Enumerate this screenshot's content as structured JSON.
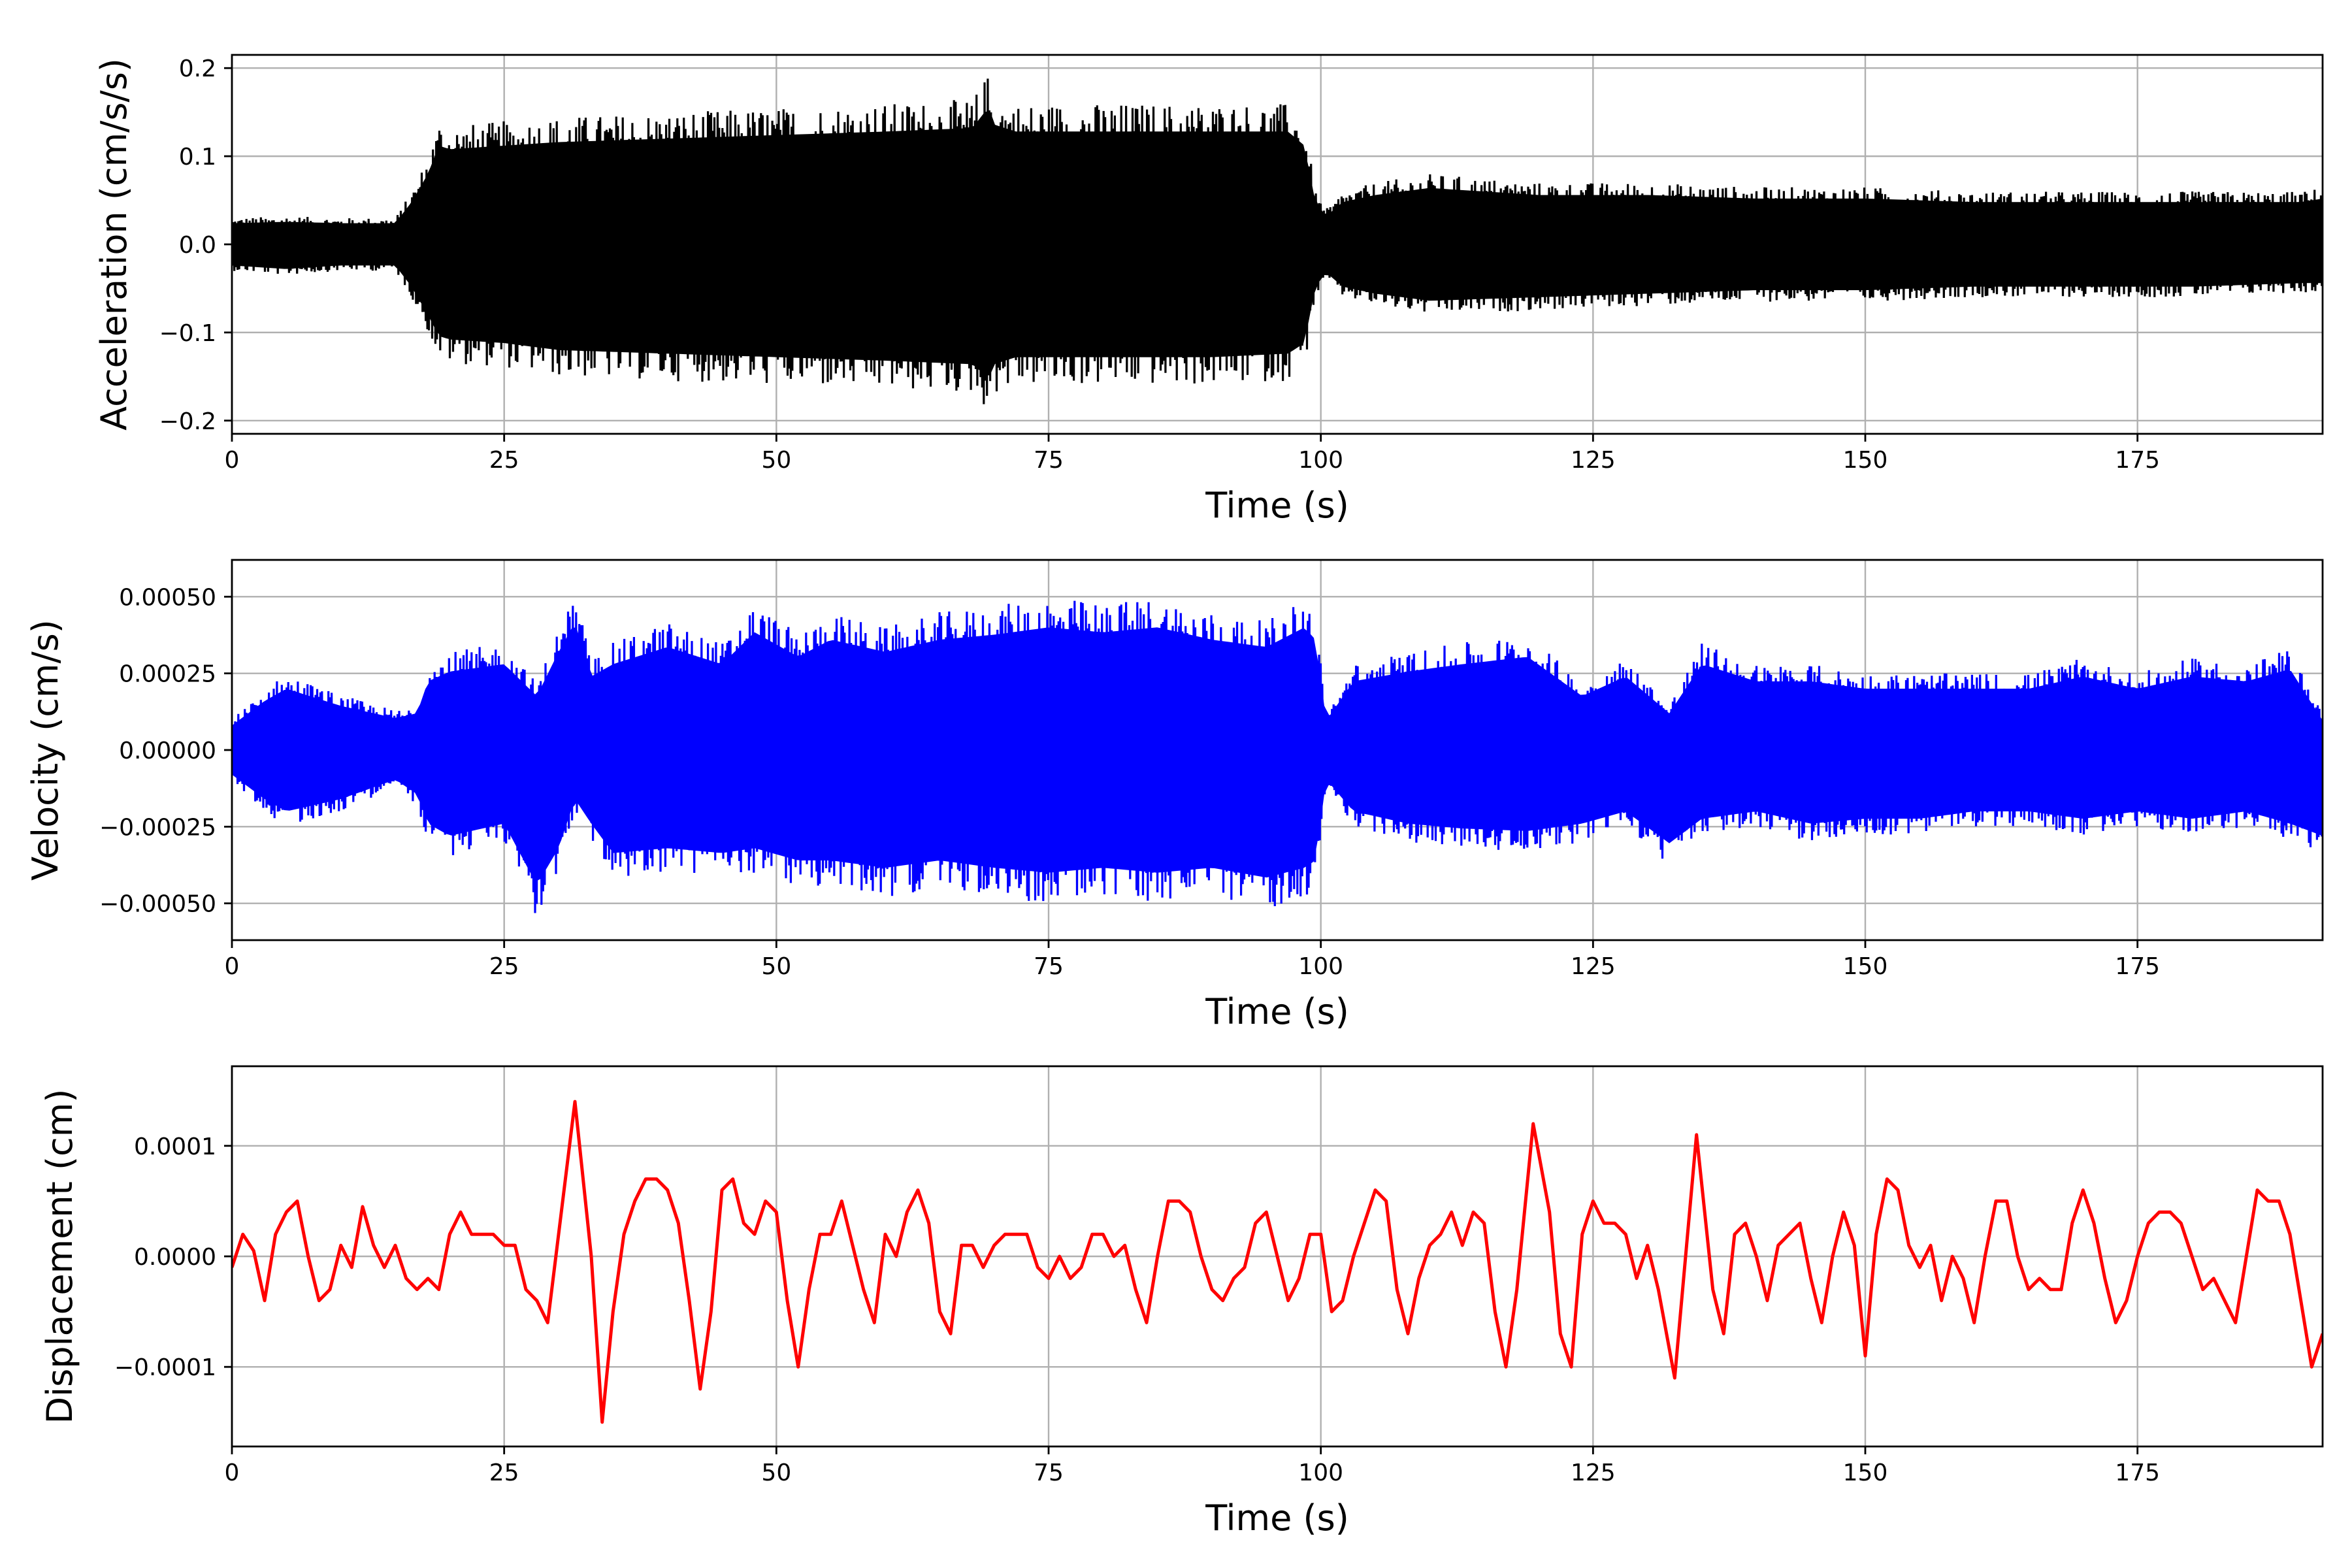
{
  "chart_data": [
    {
      "type": "line",
      "ylabel": "Acceleration (cm/s/s)",
      "xlabel": "Time (s)",
      "xlim": [
        0,
        192
      ],
      "ylim": [
        -0.215,
        0.215
      ],
      "xticks": [
        0,
        25,
        50,
        75,
        100,
        125,
        150,
        175
      ],
      "xtick_labels": [
        "0",
        "25",
        "50",
        "75",
        "100",
        "125",
        "150",
        "175"
      ],
      "yticks": [
        -0.2,
        -0.1,
        0.0,
        0.1,
        0.2
      ],
      "ytick_labels": [
        "−0.2",
        "−0.1",
        "0.0",
        "0.1",
        "0.2"
      ],
      "grid": true,
      "color": "#000000",
      "series": [
        {
          "envelope": {
            "x": [
              0,
              5,
              10,
              15,
              16.5,
              18,
              19,
              20,
              25,
              30,
              40,
              50,
              60,
              68,
              69.5,
              70,
              72,
              80,
              90,
              97,
              98.5,
              99.5,
              100.5,
              102,
              105,
              110,
              120,
              130,
              140,
              150,
              160,
              170,
              180,
              190,
              192
            ],
            "upper": [
              0.03,
              0.032,
              0.03,
              0.03,
              0.06,
              0.1,
              0.14,
              0.135,
              0.14,
              0.145,
              0.15,
              0.155,
              0.16,
              0.165,
              0.195,
              0.17,
              0.16,
              0.16,
              0.16,
              0.16,
              0.14,
              0.06,
              0.04,
              0.06,
              0.07,
              0.08,
              0.07,
              0.07,
              0.065,
              0.065,
              0.06,
              0.06,
              0.06,
              0.06,
              0.065
            ],
            "lower": [
              -0.03,
              -0.035,
              -0.03,
              -0.03,
              -0.06,
              -0.1,
              -0.13,
              -0.135,
              -0.14,
              -0.15,
              -0.155,
              -0.16,
              -0.165,
              -0.17,
              -0.19,
              -0.17,
              -0.16,
              -0.16,
              -0.16,
              -0.155,
              -0.14,
              -0.06,
              -0.04,
              -0.06,
              -0.07,
              -0.08,
              -0.075,
              -0.07,
              -0.065,
              -0.065,
              -0.06,
              -0.06,
              -0.06,
              -0.055,
              -0.055
            ]
          }
        }
      ]
    },
    {
      "type": "line",
      "ylabel": "Velocity (cm/s)",
      "xlabel": "Time (s)",
      "xlim": [
        0,
        192
      ],
      "ylim": [
        -0.00062,
        0.00062
      ],
      "xticks": [
        0,
        25,
        50,
        75,
        100,
        125,
        150,
        175
      ],
      "xtick_labels": [
        "0",
        "25",
        "50",
        "75",
        "100",
        "125",
        "150",
        "175"
      ],
      "yticks": [
        -0.0005,
        -0.00025,
        0.0,
        0.00025,
        0.0005
      ],
      "ytick_labels": [
        "−0.00050",
        "−0.00025",
        "0.00000",
        "0.00025",
        "0.00050"
      ],
      "grid": true,
      "color": "#0000ff",
      "series": [
        {
          "envelope": {
            "x": [
              0,
              3,
              5,
              10,
              15,
              17,
              18,
              20,
              25,
              28,
              30,
              31.5,
              33,
              35,
              40,
              45,
              48,
              52,
              55,
              60,
              65,
              70,
              75,
              80,
              85,
              90,
              95,
              98.5,
              99.5,
              100.5,
              103,
              108,
              113,
              119,
              124,
              128,
              132,
              135,
              140,
              145,
              150,
              155,
              160,
              165,
              170,
              175,
              180,
              185,
              189,
              192
            ],
            "upper": [
              0.0001,
              0.0002,
              0.00025,
              0.00018,
              0.00013,
              0.00015,
              0.00028,
              0.00032,
              0.00035,
              0.00022,
              0.0004,
              0.00052,
              0.0003,
              0.00035,
              0.00042,
              0.00035,
              0.00048,
              0.00038,
              0.00045,
              0.0004,
              0.00045,
              0.00047,
              0.0005,
              0.00048,
              0.0005,
              0.00045,
              0.00042,
              0.0005,
              0.00045,
              0.00012,
              0.00028,
              0.00032,
              0.00035,
              0.00038,
              0.00022,
              0.0003,
              0.00015,
              0.00035,
              0.00028,
              0.00028,
              0.00025,
              0.00025,
              0.00025,
              0.00025,
              0.0003,
              0.00025,
              0.0003,
              0.00028,
              0.00033,
              0.00012
            ],
            "lower": [
              -0.0001,
              -0.0002,
              -0.00025,
              -0.0002,
              -0.00012,
              -0.00018,
              -0.0003,
              -0.00035,
              -0.0003,
              -0.00055,
              -0.0004,
              -0.0002,
              -0.0003,
              -0.00042,
              -0.0004,
              -0.00042,
              -0.0004,
              -0.00045,
              -0.00045,
              -0.00048,
              -0.00045,
              -0.00048,
              -0.0005,
              -0.00048,
              -0.0005,
              -0.00048,
              -0.00052,
              -0.00048,
              -0.00045,
              -0.00012,
              -0.00025,
              -0.0003,
              -0.00032,
              -0.00033,
              -0.0003,
              -0.00025,
              -0.00038,
              -0.00028,
              -0.00025,
              -0.0003,
              -0.00028,
              -0.00028,
              -0.00025,
              -0.00025,
              -0.00028,
              -0.00025,
              -0.00028,
              -0.00025,
              -0.0003,
              -0.00035
            ]
          }
        }
      ]
    },
    {
      "type": "line",
      "ylabel": "Displacement (cm)",
      "xlabel": "Time (s)",
      "xlim": [
        0,
        192
      ],
      "ylim": [
        -0.000172,
        0.000172
      ],
      "xticks": [
        0,
        25,
        50,
        75,
        100,
        125,
        150,
        175
      ],
      "xtick_labels": [
        "0",
        "25",
        "50",
        "75",
        "100",
        "125",
        "150",
        "175"
      ],
      "yticks": [
        -0.0001,
        0.0,
        0.0001
      ],
      "ytick_labels": [
        "−0.0001",
        "0.0000",
        "0.0001"
      ],
      "grid": true,
      "color": "#ff0000",
      "series": [
        {
          "x": [
            0,
            1,
            2,
            3,
            4,
            5,
            6,
            7,
            8,
            9,
            10,
            11,
            12,
            13,
            14,
            15,
            16,
            17,
            18,
            19,
            20,
            21,
            22,
            23,
            24,
            25,
            26,
            27,
            28,
            29,
            30,
            31.5,
            33,
            34,
            35,
            36,
            37,
            38,
            39,
            40,
            41,
            42,
            43,
            44,
            45,
            46,
            47,
            48,
            49,
            50,
            51,
            52,
            53,
            54,
            55,
            56,
            57,
            58,
            59,
            60,
            61,
            62,
            63,
            64,
            65,
            66,
            67,
            68,
            69,
            70,
            71,
            72,
            73,
            74,
            75,
            76,
            77,
            78,
            79,
            80,
            81,
            82,
            83,
            84,
            85,
            86,
            87,
            88,
            89,
            90,
            91,
            92,
            93,
            94,
            95,
            96,
            97,
            98,
            99,
            100,
            101,
            102,
            103,
            104,
            105,
            106,
            107,
            108,
            109,
            110,
            111,
            112,
            113,
            114,
            115,
            116,
            117,
            118,
            119.5,
            121,
            122,
            123,
            124,
            125,
            126,
            127,
            128,
            129,
            130,
            131,
            132.5,
            134.5,
            136,
            137,
            138,
            139,
            140,
            141,
            142,
            143,
            144,
            145,
            146,
            147,
            148,
            149,
            150,
            151,
            152,
            153,
            154,
            155,
            156,
            157,
            158,
            159,
            160,
            161,
            162,
            163,
            164,
            165,
            166,
            167,
            168,
            169,
            170,
            171,
            172,
            173,
            174,
            175,
            176,
            177,
            178,
            179,
            180,
            181,
            182,
            183,
            184,
            185,
            186,
            187,
            188,
            189,
            190,
            191,
            192
          ],
          "values": [
            -1e-05,
            2e-05,
            5e-06,
            -4e-05,
            2e-05,
            4e-05,
            5e-05,
            0.0,
            -4e-05,
            -3e-05,
            1e-05,
            -1e-05,
            4.5e-05,
            1e-05,
            -1e-05,
            1e-05,
            -2e-05,
            -3e-05,
            -2e-05,
            -3e-05,
            2e-05,
            4e-05,
            2e-05,
            2e-05,
            2e-05,
            1e-05,
            1e-05,
            -3e-05,
            -4e-05,
            -6e-05,
            2e-05,
            0.00014,
            0.0,
            -0.00015,
            -5e-05,
            2e-05,
            5e-05,
            7e-05,
            7e-05,
            6e-05,
            3e-05,
            -4e-05,
            -0.00012,
            -5e-05,
            6e-05,
            7e-05,
            3e-05,
            2e-05,
            5e-05,
            4e-05,
            -4e-05,
            -0.0001,
            -3e-05,
            2e-05,
            2e-05,
            5e-05,
            1e-05,
            -3e-05,
            -6e-05,
            2e-05,
            0.0,
            4e-05,
            6e-05,
            3e-05,
            -5e-05,
            -7e-05,
            1e-05,
            1e-05,
            -1e-05,
            1e-05,
            2e-05,
            2e-05,
            2e-05,
            -1e-05,
            -2e-05,
            0.0,
            -2e-05,
            -1e-05,
            2e-05,
            2e-05,
            0.0,
            1e-05,
            -3e-05,
            -6e-05,
            0.0,
            5e-05,
            5e-05,
            4e-05,
            0.0,
            -3e-05,
            -4e-05,
            -2e-05,
            -1e-05,
            3e-05,
            4e-05,
            0.0,
            -4e-05,
            -2e-05,
            2e-05,
            2e-05,
            -5e-05,
            -4e-05,
            0.0,
            3e-05,
            6e-05,
            5e-05,
            -3e-05,
            -7e-05,
            -2e-05,
            1e-05,
            2e-05,
            4e-05,
            1e-05,
            4e-05,
            3e-05,
            -5e-05,
            -0.0001,
            -3e-05,
            0.00012,
            4e-05,
            -7e-05,
            -0.0001,
            2e-05,
            5e-05,
            3e-05,
            3e-05,
            2e-05,
            -2e-05,
            1e-05,
            -3e-05,
            -0.00011,
            0.00011,
            -3e-05,
            -7e-05,
            2e-05,
            3e-05,
            0.0,
            -4e-05,
            1e-05,
            2e-05,
            3e-05,
            -2e-05,
            -6e-05,
            0.0,
            4e-05,
            1e-05,
            -9e-05,
            2e-05,
            7e-05,
            6e-05,
            1e-05,
            -1e-05,
            1e-05,
            -4e-05,
            0.0,
            -2e-05,
            -6e-05,
            0.0,
            5e-05,
            5e-05,
            0.0,
            -3e-05,
            -2e-05,
            -3e-05,
            -3e-05,
            3e-05,
            6e-05,
            3e-05,
            -2e-05,
            -6e-05,
            -4e-05,
            0.0,
            3e-05,
            4e-05,
            4e-05,
            3e-05,
            0.0,
            -3e-05,
            -2e-05,
            -4e-05,
            -6e-05,
            0.0,
            6e-05,
            5e-05,
            5e-05,
            2e-05,
            -4e-05,
            -0.0001,
            -7e-05
          ]
        }
      ]
    }
  ]
}
